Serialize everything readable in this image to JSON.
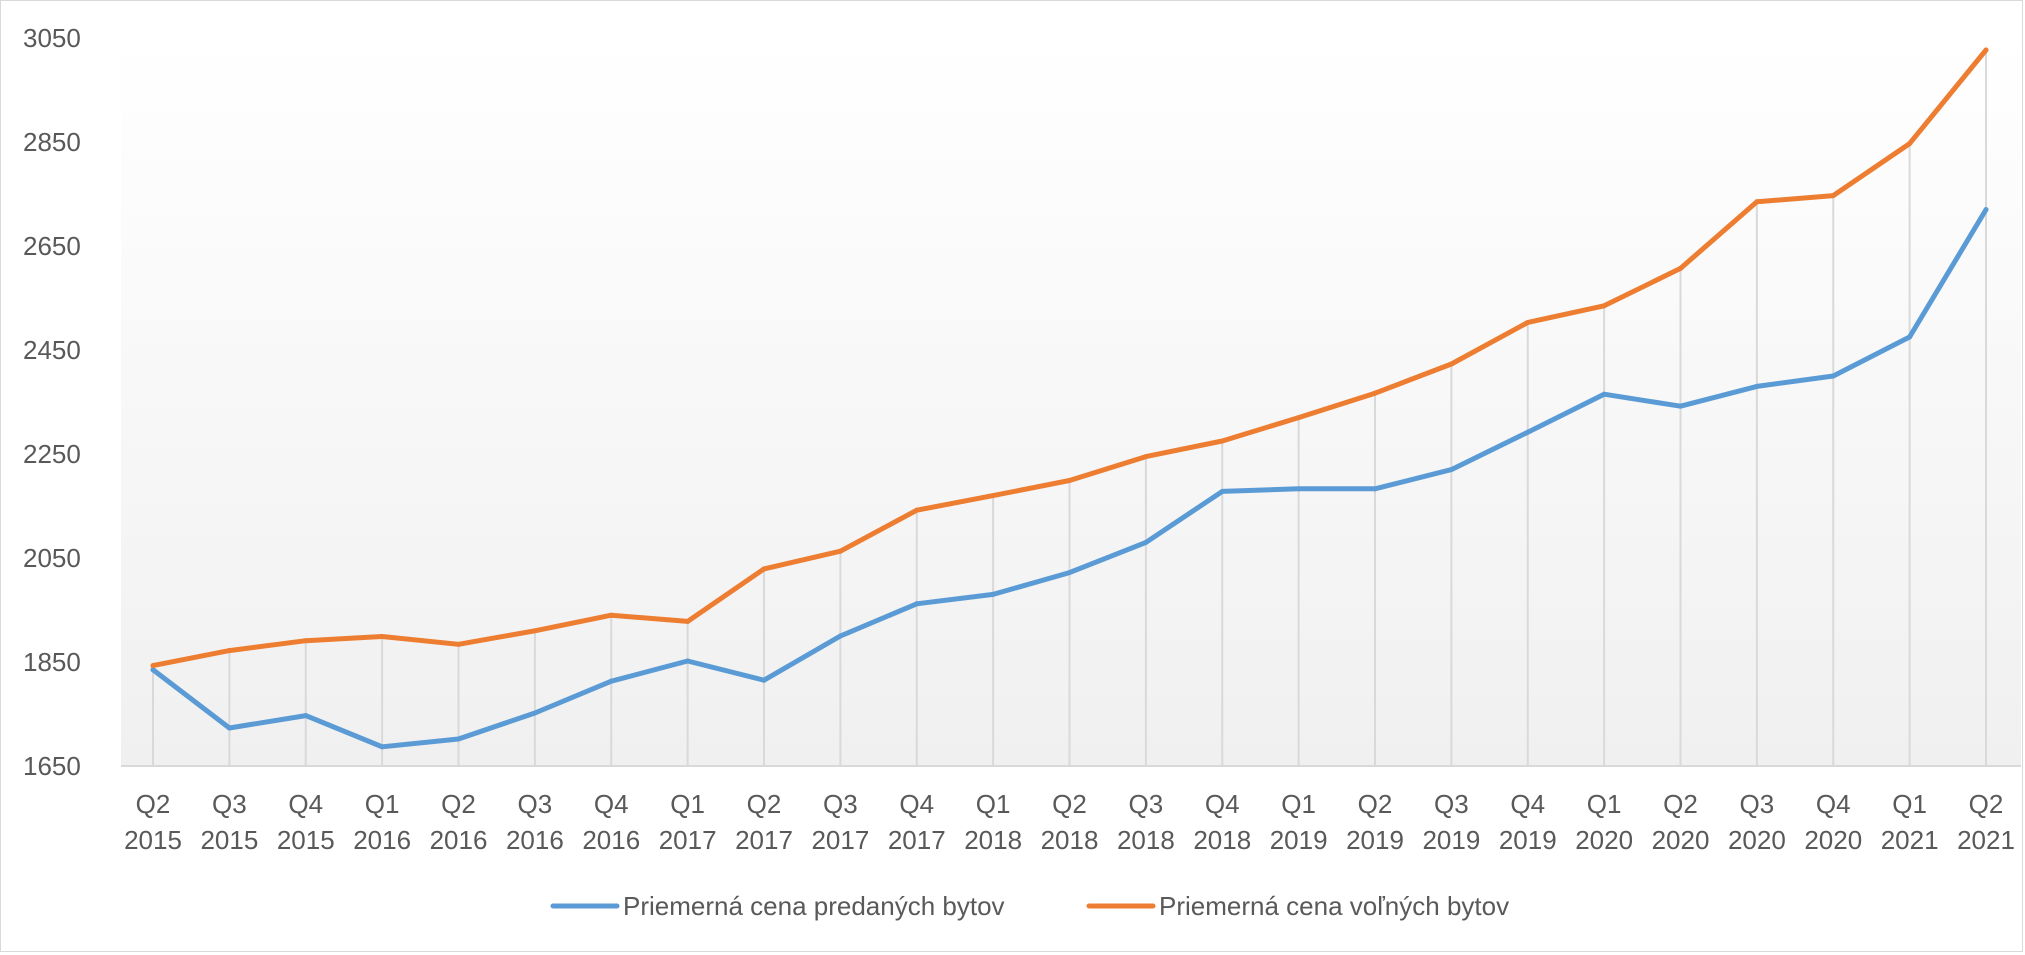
{
  "chart_data": {
    "type": "line",
    "categories": [
      [
        "Q2",
        "2015"
      ],
      [
        "Q3",
        "2015"
      ],
      [
        "Q4",
        "2015"
      ],
      [
        "Q1",
        "2016"
      ],
      [
        "Q2",
        "2016"
      ],
      [
        "Q3",
        "2016"
      ],
      [
        "Q4",
        "2016"
      ],
      [
        "Q1",
        "2017"
      ],
      [
        "Q2",
        "2017"
      ],
      [
        "Q3",
        "2017"
      ],
      [
        "Q4",
        "2017"
      ],
      [
        "Q1",
        "2018"
      ],
      [
        "Q2",
        "2018"
      ],
      [
        "Q3",
        "2018"
      ],
      [
        "Q4",
        "2018"
      ],
      [
        "Q1",
        "2019"
      ],
      [
        "Q2",
        "2019"
      ],
      [
        "Q3",
        "2019"
      ],
      [
        "Q4",
        "2019"
      ],
      [
        "Q1",
        "2020"
      ],
      [
        "Q2",
        "2020"
      ],
      [
        "Q3",
        "2020"
      ],
      [
        "Q4",
        "2020"
      ],
      [
        "Q1",
        "2021"
      ],
      [
        "Q2",
        "2021"
      ]
    ],
    "series": [
      {
        "name": "Priemerná cena predaných bytov",
        "color": "#5b9bd5",
        "values": [
          1835,
          1723,
          1747,
          1687,
          1702,
          1752,
          1813,
          1852,
          1815,
          1900,
          1962,
          1980,
          2022,
          2080,
          2178,
          2183,
          2183,
          2220,
          2292,
          2365,
          2342,
          2380,
          2400,
          2475,
          2720
        ]
      },
      {
        "name": "Priemerná cena voľných bytov",
        "color": "#ed7d31",
        "values": [
          1843,
          1872,
          1891,
          1899,
          1884,
          1910,
          1940,
          1928,
          2029,
          2063,
          2142,
          2170,
          2199,
          2245,
          2275,
          2320,
          2367,
          2423,
          2503,
          2535,
          2607,
          2735,
          2747,
          2847,
          3027
        ]
      }
    ],
    "yticks": [
      1650,
      1850,
      2050,
      2250,
      2450,
      2650,
      2850,
      3050
    ],
    "ylim": [
      1650,
      3050
    ],
    "grid": "vertical",
    "legend": "bottom"
  }
}
